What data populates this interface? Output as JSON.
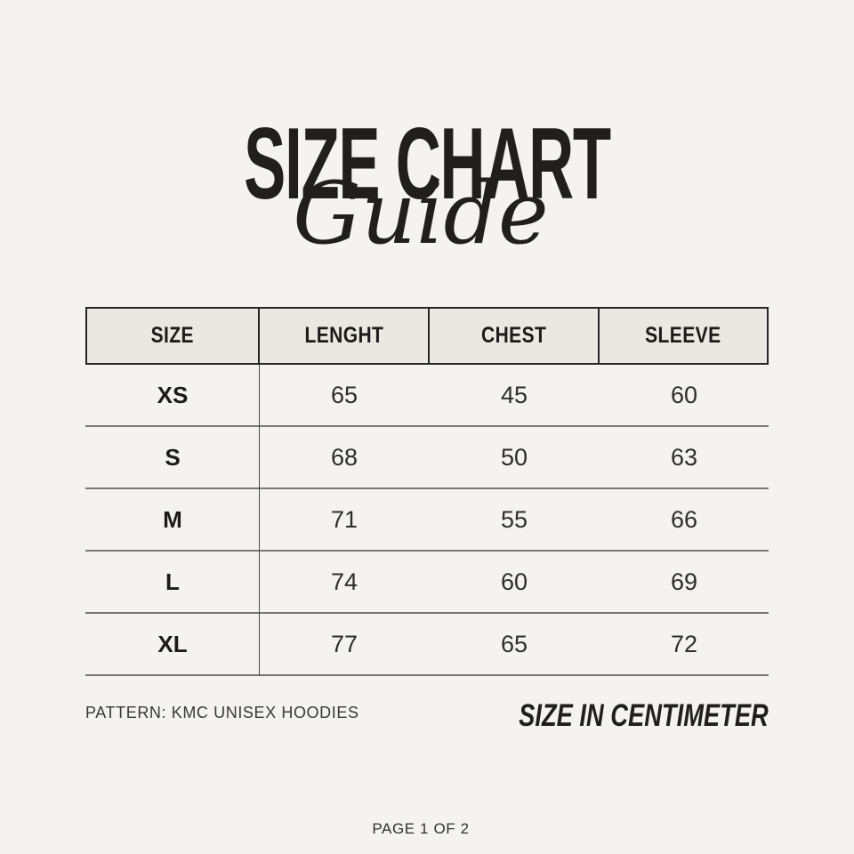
{
  "page": {
    "background_color": "#f4f3f0",
    "text_color": "#211f1c",
    "title": "SIZE CHART",
    "title_script": "Guide"
  },
  "table": {
    "header_fill_color": "#e9e8e2",
    "header_border_color": "#262626",
    "row_separator_color": "#787878",
    "headers": [
      "SIZE",
      "LENGHT",
      "CHEST",
      "SLEEVE"
    ],
    "rows": [
      {
        "size": "XS",
        "length": "65",
        "chest": "45",
        "sleeve": "60"
      },
      {
        "size": "S",
        "length": "68",
        "chest": "50",
        "sleeve": "63"
      },
      {
        "size": "M",
        "length": "71",
        "chest": "55",
        "sleeve": "66"
      },
      {
        "size": "L",
        "length": "74",
        "chest": "60",
        "sleeve": "69"
      },
      {
        "size": "XL",
        "length": "77",
        "chest": "65",
        "sleeve": "72"
      }
    ]
  },
  "footer": {
    "pattern": "PATTERN: KMC UNISEX HOODIES",
    "unit_note": "SIZE IN CENTIMETER",
    "page_indicator": "PAGE 1 OF 2"
  }
}
